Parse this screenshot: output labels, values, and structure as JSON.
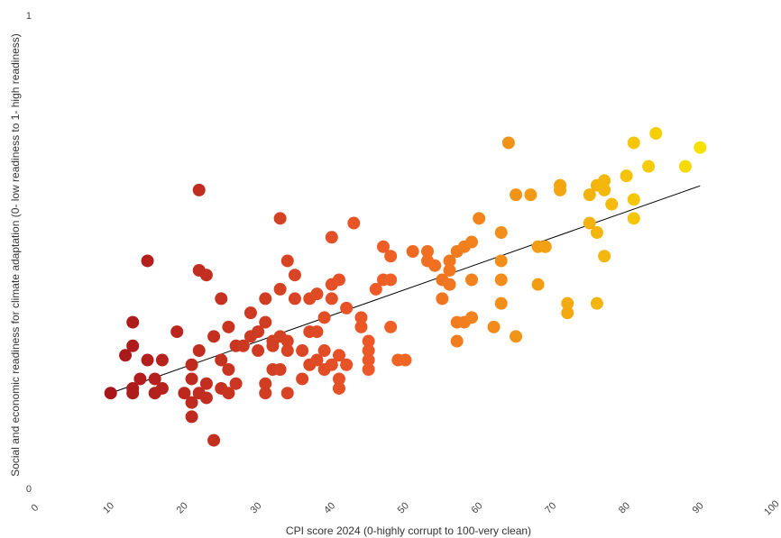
{
  "chart_data": {
    "type": "scatter",
    "xlabel": "CPI score 2024 (0-highly corrupt to 100-very clean)",
    "ylabel": "Social and economic readiness for climate adaptation (0- low readiness to 1- high readiness)",
    "xlim": [
      0,
      100
    ],
    "ylim": [
      0,
      1
    ],
    "x_ticks": [
      "0",
      "10",
      "20",
      "30",
      "40",
      "50",
      "60",
      "70",
      "80",
      "90",
      "100"
    ],
    "y_ticks": [
      "0",
      "1"
    ],
    "grid": false,
    "legend": "none",
    "color_scale": {
      "low": "#a8151a",
      "mid": "#ef5a28",
      "high": "#f6e000",
      "domain": [
        10,
        90
      ]
    },
    "trendline": {
      "x": [
        10,
        90
      ],
      "y": [
        0.2,
        0.639
      ],
      "color": "#000000"
    },
    "points": [
      {
        "x": 10,
        "y": 0.2
      },
      {
        "x": 13,
        "y": 0.21
      },
      {
        "x": 13,
        "y": 0.2
      },
      {
        "x": 14,
        "y": 0.23
      },
      {
        "x": 12,
        "y": 0.28
      },
      {
        "x": 13,
        "y": 0.3
      },
      {
        "x": 13,
        "y": 0.35
      },
      {
        "x": 15,
        "y": 0.48
      },
      {
        "x": 15,
        "y": 0.27
      },
      {
        "x": 16,
        "y": 0.2
      },
      {
        "x": 16,
        "y": 0.23
      },
      {
        "x": 17,
        "y": 0.27
      },
      {
        "x": 17,
        "y": 0.21
      },
      {
        "x": 19,
        "y": 0.33
      },
      {
        "x": 20,
        "y": 0.2
      },
      {
        "x": 21,
        "y": 0.15
      },
      {
        "x": 21,
        "y": 0.18
      },
      {
        "x": 21,
        "y": 0.23
      },
      {
        "x": 21,
        "y": 0.26
      },
      {
        "x": 22,
        "y": 0.2
      },
      {
        "x": 22,
        "y": 0.29
      },
      {
        "x": 22,
        "y": 0.46
      },
      {
        "x": 22,
        "y": 0.63
      },
      {
        "x": 23,
        "y": 0.19
      },
      {
        "x": 23,
        "y": 0.22
      },
      {
        "x": 23,
        "y": 0.45
      },
      {
        "x": 24,
        "y": 0.1
      },
      {
        "x": 24,
        "y": 0.32
      },
      {
        "x": 25,
        "y": 0.21
      },
      {
        "x": 25,
        "y": 0.27
      },
      {
        "x": 25,
        "y": 0.4
      },
      {
        "x": 26,
        "y": 0.2
      },
      {
        "x": 26,
        "y": 0.25
      },
      {
        "x": 26,
        "y": 0.34
      },
      {
        "x": 27,
        "y": 0.22
      },
      {
        "x": 27,
        "y": 0.3
      },
      {
        "x": 28,
        "y": 0.3
      },
      {
        "x": 29,
        "y": 0.37
      },
      {
        "x": 29,
        "y": 0.32
      },
      {
        "x": 30,
        "y": 0.33
      },
      {
        "x": 30,
        "y": 0.29
      },
      {
        "x": 31,
        "y": 0.2
      },
      {
        "x": 31,
        "y": 0.22
      },
      {
        "x": 31,
        "y": 0.35
      },
      {
        "x": 31,
        "y": 0.4
      },
      {
        "x": 32,
        "y": 0.25
      },
      {
        "x": 32,
        "y": 0.3
      },
      {
        "x": 32,
        "y": 0.31
      },
      {
        "x": 33,
        "y": 0.25
      },
      {
        "x": 33,
        "y": 0.32
      },
      {
        "x": 33,
        "y": 0.42
      },
      {
        "x": 33,
        "y": 0.57
      },
      {
        "x": 34,
        "y": 0.2
      },
      {
        "x": 34,
        "y": 0.29
      },
      {
        "x": 34,
        "y": 0.31
      },
      {
        "x": 34,
        "y": 0.48
      },
      {
        "x": 35,
        "y": 0.4
      },
      {
        "x": 35,
        "y": 0.45
      },
      {
        "x": 36,
        "y": 0.23
      },
      {
        "x": 36,
        "y": 0.29
      },
      {
        "x": 37,
        "y": 0.26
      },
      {
        "x": 37,
        "y": 0.33
      },
      {
        "x": 37,
        "y": 0.4
      },
      {
        "x": 38,
        "y": 0.27
      },
      {
        "x": 38,
        "y": 0.33
      },
      {
        "x": 38,
        "y": 0.41
      },
      {
        "x": 39,
        "y": 0.25
      },
      {
        "x": 39,
        "y": 0.29
      },
      {
        "x": 39,
        "y": 0.36
      },
      {
        "x": 40,
        "y": 0.4
      },
      {
        "x": 40,
        "y": 0.43
      },
      {
        "x": 40,
        "y": 0.53
      },
      {
        "x": 40,
        "y": 0.26
      },
      {
        "x": 41,
        "y": 0.21
      },
      {
        "x": 41,
        "y": 0.23
      },
      {
        "x": 41,
        "y": 0.28
      },
      {
        "x": 41,
        "y": 0.44
      },
      {
        "x": 42,
        "y": 0.26
      },
      {
        "x": 42,
        "y": 0.38
      },
      {
        "x": 43,
        "y": 0.56
      },
      {
        "x": 44,
        "y": 0.36
      },
      {
        "x": 44,
        "y": 0.34
      },
      {
        "x": 45,
        "y": 0.25
      },
      {
        "x": 45,
        "y": 0.27
      },
      {
        "x": 45,
        "y": 0.29
      },
      {
        "x": 45,
        "y": 0.31
      },
      {
        "x": 46,
        "y": 0.42
      },
      {
        "x": 47,
        "y": 0.44
      },
      {
        "x": 47,
        "y": 0.51
      },
      {
        "x": 48,
        "y": 0.34
      },
      {
        "x": 48,
        "y": 0.44
      },
      {
        "x": 48,
        "y": 0.49
      },
      {
        "x": 49,
        "y": 0.27
      },
      {
        "x": 50,
        "y": 0.27
      },
      {
        "x": 51,
        "y": 0.5
      },
      {
        "x": 53,
        "y": 0.48
      },
      {
        "x": 53,
        "y": 0.5
      },
      {
        "x": 54,
        "y": 0.47
      },
      {
        "x": 55,
        "y": 0.4
      },
      {
        "x": 55,
        "y": 0.44
      },
      {
        "x": 56,
        "y": 0.43
      },
      {
        "x": 56,
        "y": 0.46
      },
      {
        "x": 56,
        "y": 0.48
      },
      {
        "x": 57,
        "y": 0.31
      },
      {
        "x": 57,
        "y": 0.35
      },
      {
        "x": 57,
        "y": 0.5
      },
      {
        "x": 58,
        "y": 0.35
      },
      {
        "x": 58,
        "y": 0.51
      },
      {
        "x": 59,
        "y": 0.36
      },
      {
        "x": 59,
        "y": 0.44
      },
      {
        "x": 59,
        "y": 0.52
      },
      {
        "x": 60,
        "y": 0.57
      },
      {
        "x": 62,
        "y": 0.34
      },
      {
        "x": 63,
        "y": 0.39
      },
      {
        "x": 63,
        "y": 0.44
      },
      {
        "x": 63,
        "y": 0.48
      },
      {
        "x": 63,
        "y": 0.54
      },
      {
        "x": 64,
        "y": 0.73
      },
      {
        "x": 65,
        "y": 0.32
      },
      {
        "x": 65,
        "y": 0.62
      },
      {
        "x": 67,
        "y": 0.62
      },
      {
        "x": 68,
        "y": 0.43
      },
      {
        "x": 68,
        "y": 0.51
      },
      {
        "x": 69,
        "y": 0.51
      },
      {
        "x": 71,
        "y": 0.63
      },
      {
        "x": 71,
        "y": 0.64
      },
      {
        "x": 72,
        "y": 0.37
      },
      {
        "x": 72,
        "y": 0.39
      },
      {
        "x": 75,
        "y": 0.56
      },
      {
        "x": 75,
        "y": 0.62
      },
      {
        "x": 76,
        "y": 0.39
      },
      {
        "x": 76,
        "y": 0.54
      },
      {
        "x": 76,
        "y": 0.64
      },
      {
        "x": 77,
        "y": 0.49
      },
      {
        "x": 77,
        "y": 0.63
      },
      {
        "x": 77,
        "y": 0.65
      },
      {
        "x": 78,
        "y": 0.6
      },
      {
        "x": 80,
        "y": 0.66
      },
      {
        "x": 81,
        "y": 0.57
      },
      {
        "x": 81,
        "y": 0.61
      },
      {
        "x": 81,
        "y": 0.73
      },
      {
        "x": 83,
        "y": 0.68
      },
      {
        "x": 84,
        "y": 0.75
      },
      {
        "x": 88,
        "y": 0.68
      },
      {
        "x": 90,
        "y": 0.72
      }
    ]
  }
}
